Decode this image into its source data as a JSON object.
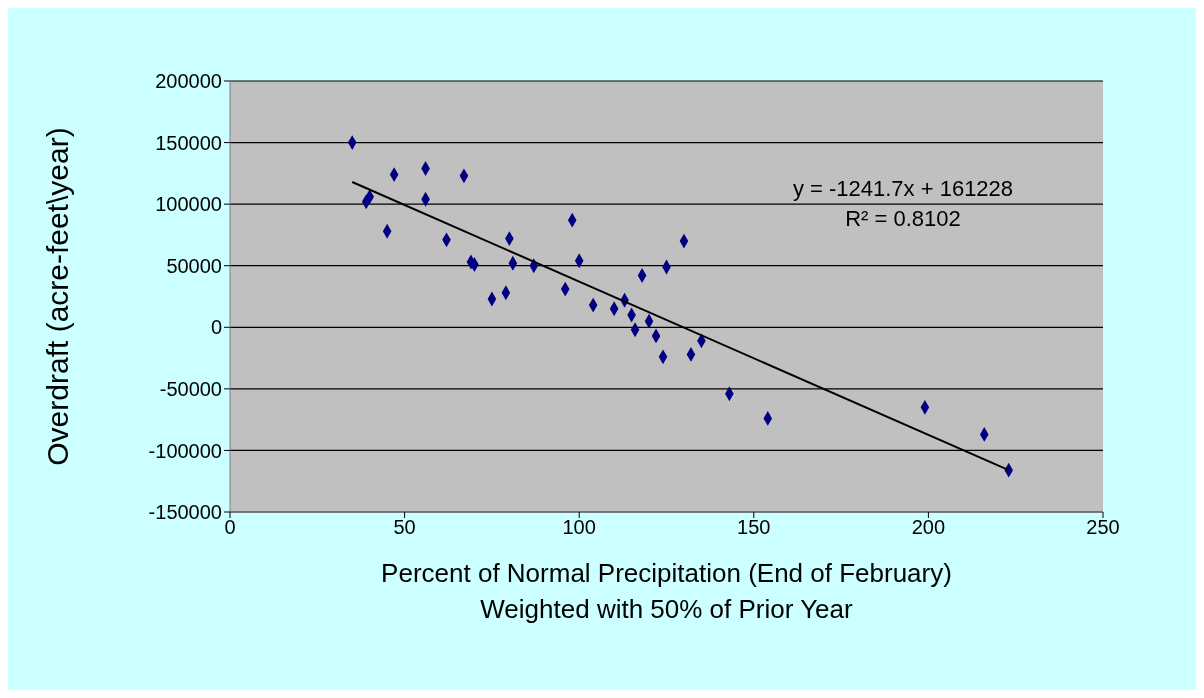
{
  "chart_data": {
    "type": "scatter",
    "xlabel": "Percent of Normal Precipitation (End of February)\nWeighted with 50% of Prior Year",
    "ylabel": "Overdraft  (acre-feet\\year)",
    "xlim": [
      0,
      250
    ],
    "xticks": [
      0,
      50,
      100,
      150,
      200,
      250
    ],
    "ylim": [
      -150000,
      200000
    ],
    "yticks": [
      -150000,
      -100000,
      -50000,
      0,
      50000,
      100000,
      150000,
      200000
    ],
    "grid": "y",
    "legend": false,
    "annotations": [
      "y = -1241.7x + 161228",
      "R² = 0.8102"
    ],
    "series": [
      {
        "marker": "diamond",
        "color": "#000080",
        "x": [
          35,
          39,
          40,
          45,
          47,
          56,
          56,
          62,
          67,
          69,
          70,
          75,
          79,
          80,
          81,
          87,
          96,
          98,
          100,
          104,
          110,
          113,
          115,
          116,
          118,
          120,
          122,
          124,
          125,
          130,
          132,
          135,
          143,
          154,
          199,
          216,
          223
        ],
        "values": [
          150000,
          102000,
          106000,
          78000,
          124000,
          129000,
          104000,
          71000,
          123000,
          53000,
          51000,
          23000,
          28000,
          72000,
          52000,
          50000,
          31000,
          87000,
          54000,
          18000,
          15000,
          22000,
          10000,
          -2000,
          42000,
          5000,
          -7000,
          -24000,
          49000,
          70000,
          -22000,
          -11000,
          -54000,
          -74000,
          -65000,
          -87000,
          -116000
        ]
      },
      {
        "type": "line",
        "color": "#000000",
        "x": [
          35,
          223
        ],
        "values": [
          118000,
          -116000
        ]
      }
    ]
  }
}
